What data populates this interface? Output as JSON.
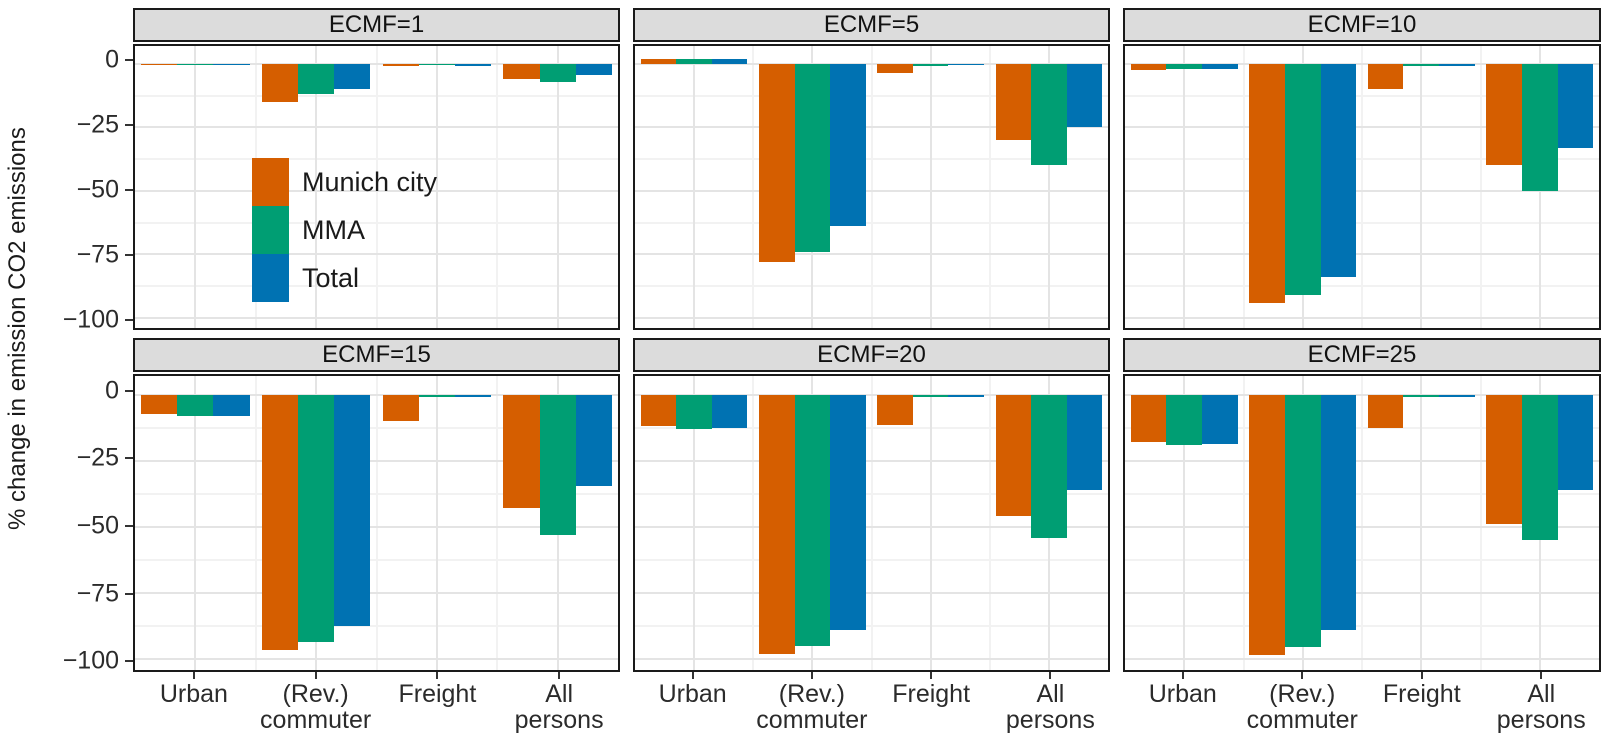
{
  "chart_data": {
    "type": "bar",
    "title": "",
    "ylabel": "% change in emission CO2 emissions",
    "xlabel": "",
    "grid": true,
    "legend_position": "inside first panel (ECMF=1)",
    "series_order": [
      "Munich city",
      "MMA",
      "Total"
    ],
    "series_colors": {
      "Munich city": "#D55E00",
      "MMA": "#009E73",
      "Total": "#0072B2"
    },
    "categories": [
      "Urban",
      "(Rev.) commuter",
      "Freight",
      "All persons"
    ],
    "category_label_lines": [
      [
        "Urban"
      ],
      [
        "(Rev.)",
        "commuter"
      ],
      [
        "Freight"
      ],
      [
        "All",
        "persons"
      ]
    ],
    "yticks": [
      0,
      -25,
      -50,
      -75,
      -100
    ],
    "minor_yticks": [
      -12.5,
      -37.5,
      -62.5,
      -87.5
    ],
    "ylim": [
      -104,
      7
    ],
    "unit": "percent",
    "facets": [
      {
        "label": "ECMF=1",
        "series": [
          {
            "name": "Munich city",
            "values": [
              -0.3,
              -15,
              -0.8,
              -6
            ]
          },
          {
            "name": "MMA",
            "values": [
              -0.6,
              -12,
              -0.5,
              -7
            ]
          },
          {
            "name": "Total",
            "values": [
              -0.5,
              -10,
              -0.7,
              -4.5
            ]
          }
        ]
      },
      {
        "label": "ECMF=5",
        "series": [
          {
            "name": "Munich city",
            "values": [
              2,
              -78,
              -3.5,
              -30
            ]
          },
          {
            "name": "MMA",
            "values": [
              1.8,
              -74,
              -0.8,
              -40
            ]
          },
          {
            "name": "Total",
            "values": [
              2,
              -64,
              -0.5,
              -25
            ]
          }
        ]
      },
      {
        "label": "ECMF=10",
        "series": [
          {
            "name": "Munich city",
            "values": [
              -2.5,
              -94,
              -10,
              -40
            ]
          },
          {
            "name": "MMA",
            "values": [
              -2,
              -91,
              -1,
              -50
            ]
          },
          {
            "name": "Total",
            "values": [
              -2,
              -84,
              -1,
              -33
            ]
          }
        ]
      },
      {
        "label": "ECMF=15",
        "series": [
          {
            "name": "Munich city",
            "values": [
              -7.5,
              -96.5,
              -10,
              -43
            ]
          },
          {
            "name": "MMA",
            "values": [
              -8,
              -93.5,
              -1,
              -53
            ]
          },
          {
            "name": "Total",
            "values": [
              -8,
              -87.5,
              -1,
              -34.5
            ]
          }
        ]
      },
      {
        "label": "ECMF=20",
        "series": [
          {
            "name": "Munich city",
            "values": [
              -12,
              -98,
              -11.5,
              -46
            ]
          },
          {
            "name": "MMA",
            "values": [
              -13,
              -95,
              -1,
              -54
            ]
          },
          {
            "name": "Total",
            "values": [
              -12.5,
              -89,
              -1,
              -36
            ]
          }
        ]
      },
      {
        "label": "ECMF=25",
        "series": [
          {
            "name": "Munich city",
            "values": [
              -18,
              -98.5,
              -12.5,
              -49
            ]
          },
          {
            "name": "MMA",
            "values": [
              -19,
              -95.5,
              -1,
              -55
            ]
          },
          {
            "name": "Total",
            "values": [
              -18.5,
              -89,
              -1,
              -36
            ]
          }
        ]
      }
    ],
    "legend": {
      "entries": [
        "Munich city",
        "MMA",
        "Total"
      ]
    }
  },
  "colors": {
    "strip_bg": "#DCDCDC",
    "panel_bg": "#FFFFFF",
    "panel_border": "#1A1A1A",
    "grid_major": "#E4E4E4",
    "grid_minor": "#F2F2F2",
    "axis_text": "#2B2B2B"
  }
}
